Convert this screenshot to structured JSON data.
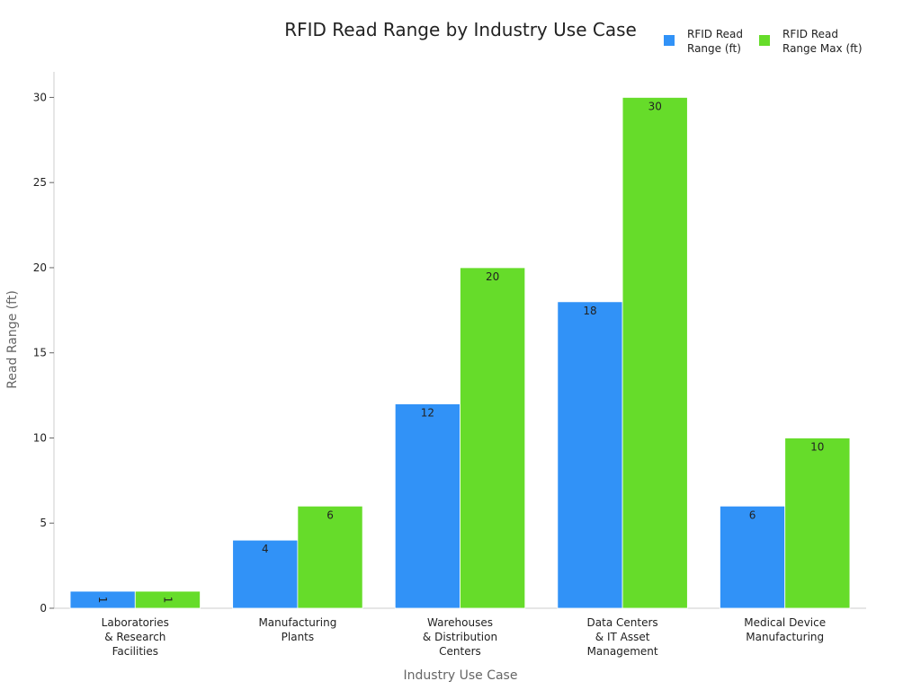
{
  "chart_data": {
    "type": "bar",
    "title": "RFID Read Range by Industry Use Case",
    "x_label": "Industry Use Case",
    "y_label": "Read Range (ft)",
    "categories": [
      "Laboratories\n& Research\nFacilities",
      "Manufacturing\nPlants",
      "Warehouses\n& Distribution\nCenters",
      "Data Centers\n& IT Asset\nManagement",
      "Medical Device\nManufacturing"
    ],
    "series": [
      {
        "name": "RFID Read\nRange (ft)",
        "color": "#3192f7",
        "values": [
          1,
          4,
          12,
          18,
          6
        ]
      },
      {
        "name": "RFID Read\nRange Max (ft)",
        "color": "#66dc2a",
        "values": [
          1,
          6,
          20,
          30,
          10
        ]
      }
    ],
    "ylim": [
      0,
      31.5
    ],
    "yticks": [
      0,
      5,
      10,
      15,
      20,
      25,
      30
    ],
    "grid": false,
    "legend": "top-right"
  }
}
